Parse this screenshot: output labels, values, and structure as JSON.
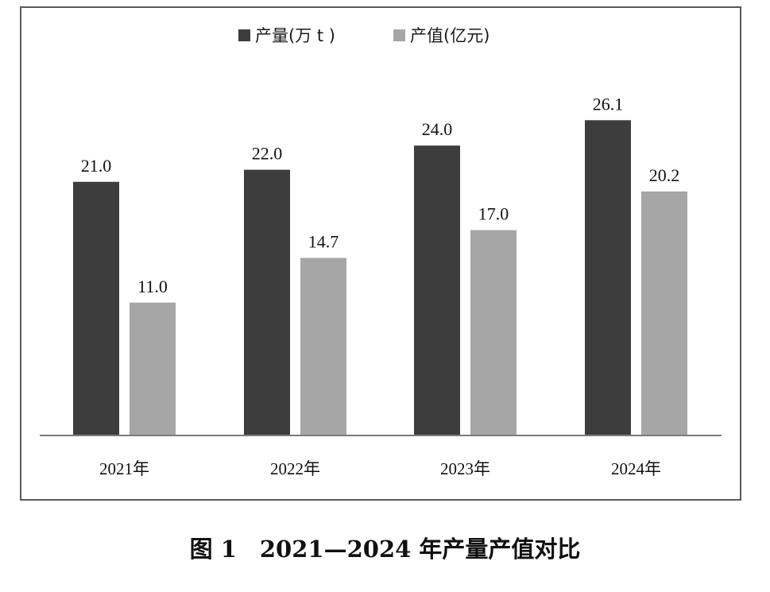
{
  "figure_caption": "图 1　2021—2024 年产量产值对比",
  "colors": {
    "series_output": "#3d3d3d",
    "series_value": "#a6a6a6",
    "axis": "#7a7a7a",
    "frame": "#5a5a5a"
  },
  "chart_data": {
    "type": "bar",
    "title": "",
    "xlabel": "",
    "ylabel": "",
    "categories": [
      "2021年",
      "2022年",
      "2023年",
      "2024年"
    ],
    "series": [
      {
        "name": "产量(万 t )",
        "values": [
          21.0,
          22.0,
          24.0,
          26.1
        ]
      },
      {
        "name": "产值(亿元)",
        "values": [
          11.0,
          14.7,
          17.0,
          20.2
        ]
      }
    ],
    "ylim": [
      0,
      28
    ],
    "grid": false,
    "legend_position": "top-center",
    "data_labels": true
  }
}
